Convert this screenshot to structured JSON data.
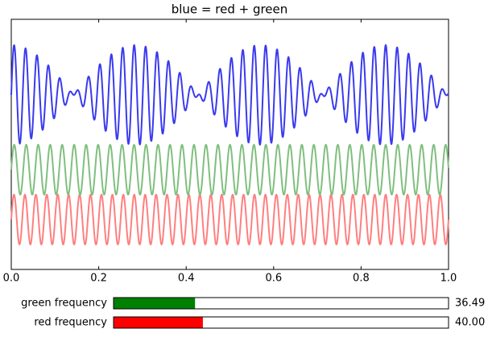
{
  "chart_data": {
    "type": "line",
    "title": "blue = red + green",
    "xlim": [
      0,
      1
    ],
    "xticks": [
      {
        "value": 0,
        "label": "0.0"
      },
      {
        "value": 0.2,
        "label": "0.2"
      },
      {
        "value": 0.4,
        "label": "0.4"
      },
      {
        "value": 0.6,
        "label": "0.6"
      },
      {
        "value": 0.8,
        "label": "0.8"
      },
      {
        "value": 1,
        "label": "1.0"
      }
    ],
    "colors": {
      "sum": "#3a3af0",
      "green": "#7fbf7f",
      "red": "#ff7f7f"
    }
  },
  "sliders": [
    {
      "label": "green frequency",
      "value": 36.49,
      "range": [
        0,
        150
      ],
      "color": "#008000"
    },
    {
      "label": "red frequency",
      "value": 40,
      "value_label": "40.00",
      "range": [
        0,
        150
      ],
      "color": "#ff0000"
    }
  ]
}
